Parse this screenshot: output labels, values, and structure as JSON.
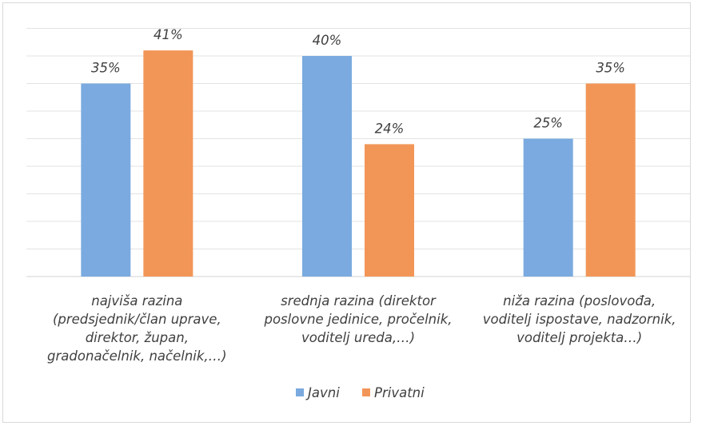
{
  "chart_data": {
    "type": "bar",
    "categories": [
      [
        "najviša razina",
        "(predsjednik/član uprave,",
        "direktor, župan,",
        "gradonačelnik, načelnik,…)"
      ],
      [
        "srednja razina (direktor",
        "poslovne jedinice, pročelnik,",
        "voditelj ureda,…)"
      ],
      [
        "niža razina (poslovođa,",
        "voditelj ispostave, nadzornik,",
        "voditelj projekta…)"
      ]
    ],
    "series": [
      {
        "name": "Javni",
        "values": [
          35,
          40,
          25
        ],
        "labels": [
          "35%",
          "40%",
          "25%"
        ],
        "color": "#7aaadf"
      },
      {
        "name": "Privatni",
        "values": [
          41,
          24,
          35
        ],
        "labels": [
          "41%",
          "24%",
          "35%"
        ],
        "color": "#f29657"
      }
    ],
    "ylim": [
      0,
      45
    ],
    "y_gridline_step": 5,
    "grid": true,
    "legend_position": "bottom",
    "title": "",
    "xlabel": "",
    "ylabel": ""
  }
}
